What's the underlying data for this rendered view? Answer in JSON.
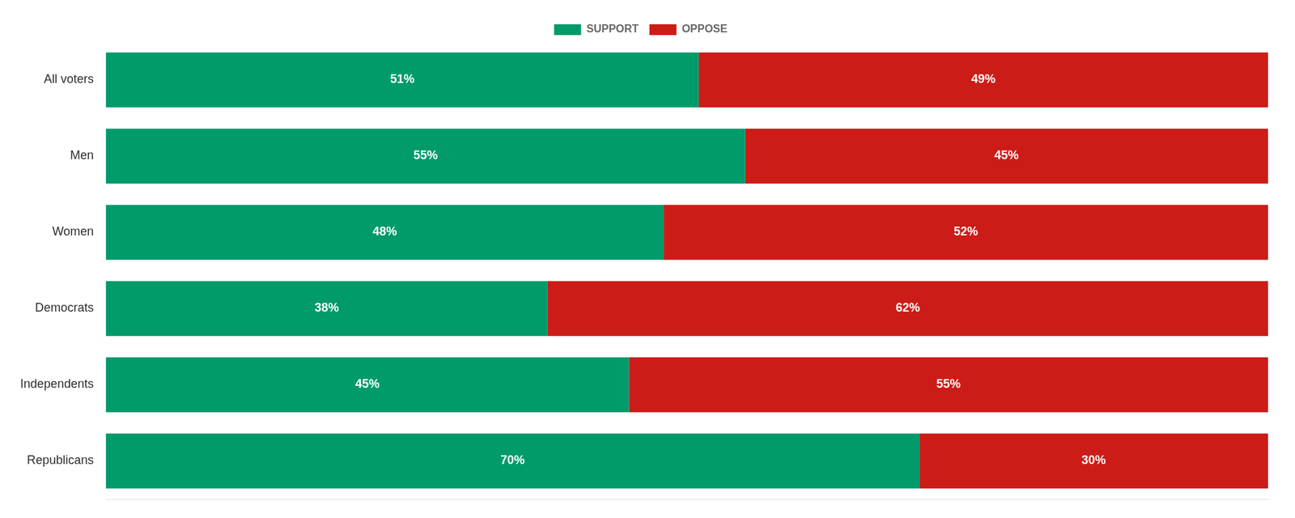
{
  "chart_data": {
    "type": "bar",
    "orientation": "horizontal",
    "stacked": true,
    "categories": [
      "All voters",
      "Men",
      "Women",
      "Democrats",
      "Independents",
      "Republicans"
    ],
    "series": [
      {
        "name": "SUPPORT",
        "color": "#009a6b",
        "values": [
          51,
          55,
          48,
          38,
          45,
          70
        ],
        "value_labels": [
          "51%",
          "55%",
          "48%",
          "38%",
          "45%",
          "70%"
        ]
      },
      {
        "name": "OPPOSE",
        "color": "#cc1c18",
        "values": [
          49,
          45,
          52,
          62,
          55,
          30
        ],
        "value_labels": [
          "49%",
          "45%",
          "52%",
          "62%",
          "55%",
          "30%"
        ]
      }
    ],
    "xlim": [
      0,
      100
    ],
    "grid": false,
    "legend": "top",
    "data_labels": true,
    "tick_labels": "y"
  }
}
